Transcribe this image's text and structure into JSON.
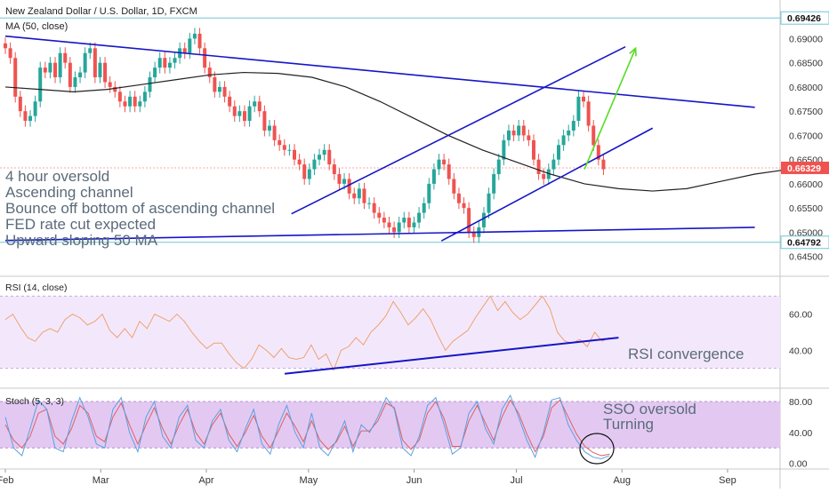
{
  "header": {
    "title": "New Zealand Dollar / U.S. Dollar, 1D, FXCM",
    "ma_label": "MA (50, close)"
  },
  "annotations": [
    "4 hour oversold",
    "Ascending channel",
    "Bounce off bottom of ascending channel",
    "FED rate cut expected",
    "Upward sloping 50 MA"
  ],
  "rsi_note": "RSI convergence",
  "stoch_note": [
    "SSO oversold",
    "Turning"
  ],
  "colors": {
    "up": "#26a69a",
    "down": "#ef5350",
    "trendline": "#1515c8",
    "projection": "#55dd22",
    "ma": "#222222",
    "rsi_line": "#f0a070",
    "rsi_band": "#f3e8fb",
    "stoch_band": "#e3c9f2",
    "stoch_k": "#5aa0e0",
    "stoch_d": "#e06060",
    "hline": "#70c6d8",
    "price_badge": "#ef5350"
  },
  "chart_data": [
    {
      "type": "candlestick",
      "pane": "price",
      "title": "New Zealand Dollar / U.S. Dollar, 1D, FXCM",
      "x_ticks": [
        "Feb",
        "Mar",
        "Apr",
        "May",
        "Jun",
        "Jul",
        "Aug",
        "Sep"
      ],
      "x_tick_days": [
        0,
        28,
        59,
        89,
        120,
        150,
        181,
        212
      ],
      "y_ticks": [
        "0.69000",
        "0.68500",
        "0.68000",
        "0.67500",
        "0.67000",
        "0.66500",
        "0.66000",
        "0.65500",
        "0.65000",
        "0.64500"
      ],
      "ylim": [
        0.642,
        0.6965
      ],
      "price_labels": {
        "high_line": "0.69426",
        "low_line": "0.64792",
        "last": "0.66329"
      },
      "candle_closes": [
        0.688,
        0.686,
        0.678,
        0.675,
        0.673,
        0.674,
        0.677,
        0.684,
        0.683,
        0.685,
        0.682,
        0.687,
        0.685,
        0.68,
        0.682,
        0.683,
        0.687,
        0.688,
        0.682,
        0.685,
        0.681,
        0.68,
        0.679,
        0.677,
        0.676,
        0.678,
        0.676,
        0.677,
        0.679,
        0.682,
        0.684,
        0.686,
        0.684,
        0.685,
        0.686,
        0.688,
        0.687,
        0.69,
        0.691,
        0.688,
        0.684,
        0.682,
        0.679,
        0.68,
        0.678,
        0.676,
        0.674,
        0.675,
        0.673,
        0.676,
        0.677,
        0.675,
        0.671,
        0.672,
        0.669,
        0.668,
        0.667,
        0.667,
        0.665,
        0.664,
        0.661,
        0.663,
        0.665,
        0.666,
        0.667,
        0.664,
        0.662,
        0.66,
        0.661,
        0.658,
        0.657,
        0.659,
        0.656,
        0.656,
        0.654,
        0.653,
        0.652,
        0.651,
        0.65,
        0.652,
        0.653,
        0.651,
        0.652,
        0.654,
        0.656,
        0.66,
        0.663,
        0.665,
        0.664,
        0.661,
        0.658,
        0.656,
        0.655,
        0.65,
        0.649,
        0.651,
        0.654,
        0.658,
        0.662,
        0.665,
        0.669,
        0.671,
        0.67,
        0.672,
        0.67,
        0.669,
        0.665,
        0.662,
        0.661,
        0.663,
        0.665,
        0.668,
        0.67,
        0.671,
        0.673,
        0.678,
        0.677,
        0.672,
        0.668,
        0.665,
        0.663
      ],
      "candle_start_day": 0,
      "ma50": [
        0.68,
        0.6795,
        0.679,
        0.6795,
        0.6805,
        0.6815,
        0.6825,
        0.683,
        0.6828,
        0.682,
        0.68,
        0.677,
        0.6735,
        0.67,
        0.667,
        0.6645,
        0.662,
        0.66,
        0.659,
        0.6585,
        0.659,
        0.6605,
        0.662,
        0.663
      ],
      "ma50_days": [
        0,
        10,
        20,
        30,
        40,
        50,
        60,
        70,
        80,
        90,
        100,
        110,
        120,
        130,
        140,
        150,
        160,
        170,
        180,
        190,
        200,
        210,
        220,
        230
      ],
      "trendlines": [
        {
          "from": [
            0,
            0.6905
          ],
          "to": [
            220,
            0.6758
          ]
        },
        {
          "from": [
            0,
            0.6483
          ],
          "to": [
            220,
            0.651
          ]
        },
        {
          "from": [
            84,
            0.6538
          ],
          "to": [
            182,
            0.6883
          ]
        },
        {
          "from": [
            128,
            0.6482
          ],
          "to": [
            190,
            0.6715
          ]
        }
      ],
      "projection_arrow": {
        "from": [
          170,
          0.663
        ],
        "to": [
          185,
          0.688
        ]
      }
    },
    {
      "type": "line",
      "pane": "rsi",
      "title": "RSI (14, close)",
      "y_ticks": [
        "60.00",
        "40.00"
      ],
      "band": [
        30,
        70
      ],
      "ylim": [
        20,
        80
      ],
      "series": [
        {
          "values": [
            57,
            60,
            53,
            47,
            45,
            50,
            52,
            50,
            57,
            60,
            58,
            54,
            56,
            60,
            51,
            47,
            52,
            47,
            56,
            52,
            60,
            58,
            56,
            60,
            56,
            50,
            45,
            41,
            44,
            44,
            38,
            33,
            30,
            35,
            43,
            40,
            36,
            41,
            36,
            35,
            36,
            43,
            35,
            38,
            29,
            40,
            42,
            47,
            43,
            50,
            54,
            59,
            67,
            61,
            54,
            58,
            63,
            57,
            48,
            40,
            45,
            48,
            51,
            58,
            64,
            70,
            62,
            67,
            61,
            57,
            60,
            65,
            70,
            63,
            50,
            45,
            44,
            46,
            42,
            50,
            45,
            47
          ]
        }
      ],
      "trendline": {
        "from": [
          82,
          27
        ],
        "to": [
          180,
          47
        ]
      }
    },
    {
      "type": "line",
      "pane": "stoch",
      "title": "Stoch (5, 3, 3)",
      "y_ticks": [
        "80.00",
        "40.00",
        "0.00"
      ],
      "band": [
        20,
        80
      ],
      "ylim": [
        -5,
        95
      ],
      "series": [
        {
          "values": [
            60,
            20,
            10,
            45,
            82,
            70,
            20,
            15,
            55,
            85,
            60,
            25,
            20,
            70,
            85,
            40,
            15,
            60,
            80,
            35,
            20,
            60,
            75,
            30,
            20,
            55,
            70,
            30,
            15,
            45,
            70,
            25,
            12,
            50,
            75,
            40,
            20,
            65,
            20,
            10,
            30,
            55,
            15,
            50,
            40,
            60,
            85,
            70,
            20,
            10,
            35,
            75,
            85,
            50,
            12,
            20,
            65,
            80,
            45,
            25,
            70,
            88,
            60,
            30,
            8,
            40,
            82,
            85,
            50,
            30,
            15,
            8,
            6,
            10
          ]
        },
        {
          "values": [
            50,
            30,
            20,
            35,
            65,
            70,
            35,
            25,
            45,
            75,
            65,
            35,
            28,
            60,
            78,
            50,
            25,
            50,
            72,
            45,
            25,
            50,
            70,
            40,
            25,
            50,
            65,
            38,
            22,
            40,
            62,
            35,
            20,
            42,
            65,
            48,
            28,
            55,
            30,
            18,
            28,
            48,
            22,
            42,
            42,
            55,
            78,
            72,
            30,
            18,
            30,
            65,
            80,
            58,
            22,
            22,
            55,
            75,
            52,
            30,
            60,
            82,
            65,
            38,
            15,
            35,
            72,
            82,
            60,
            38,
            22,
            14,
            10,
            12
          ]
        }
      ]
    }
  ]
}
